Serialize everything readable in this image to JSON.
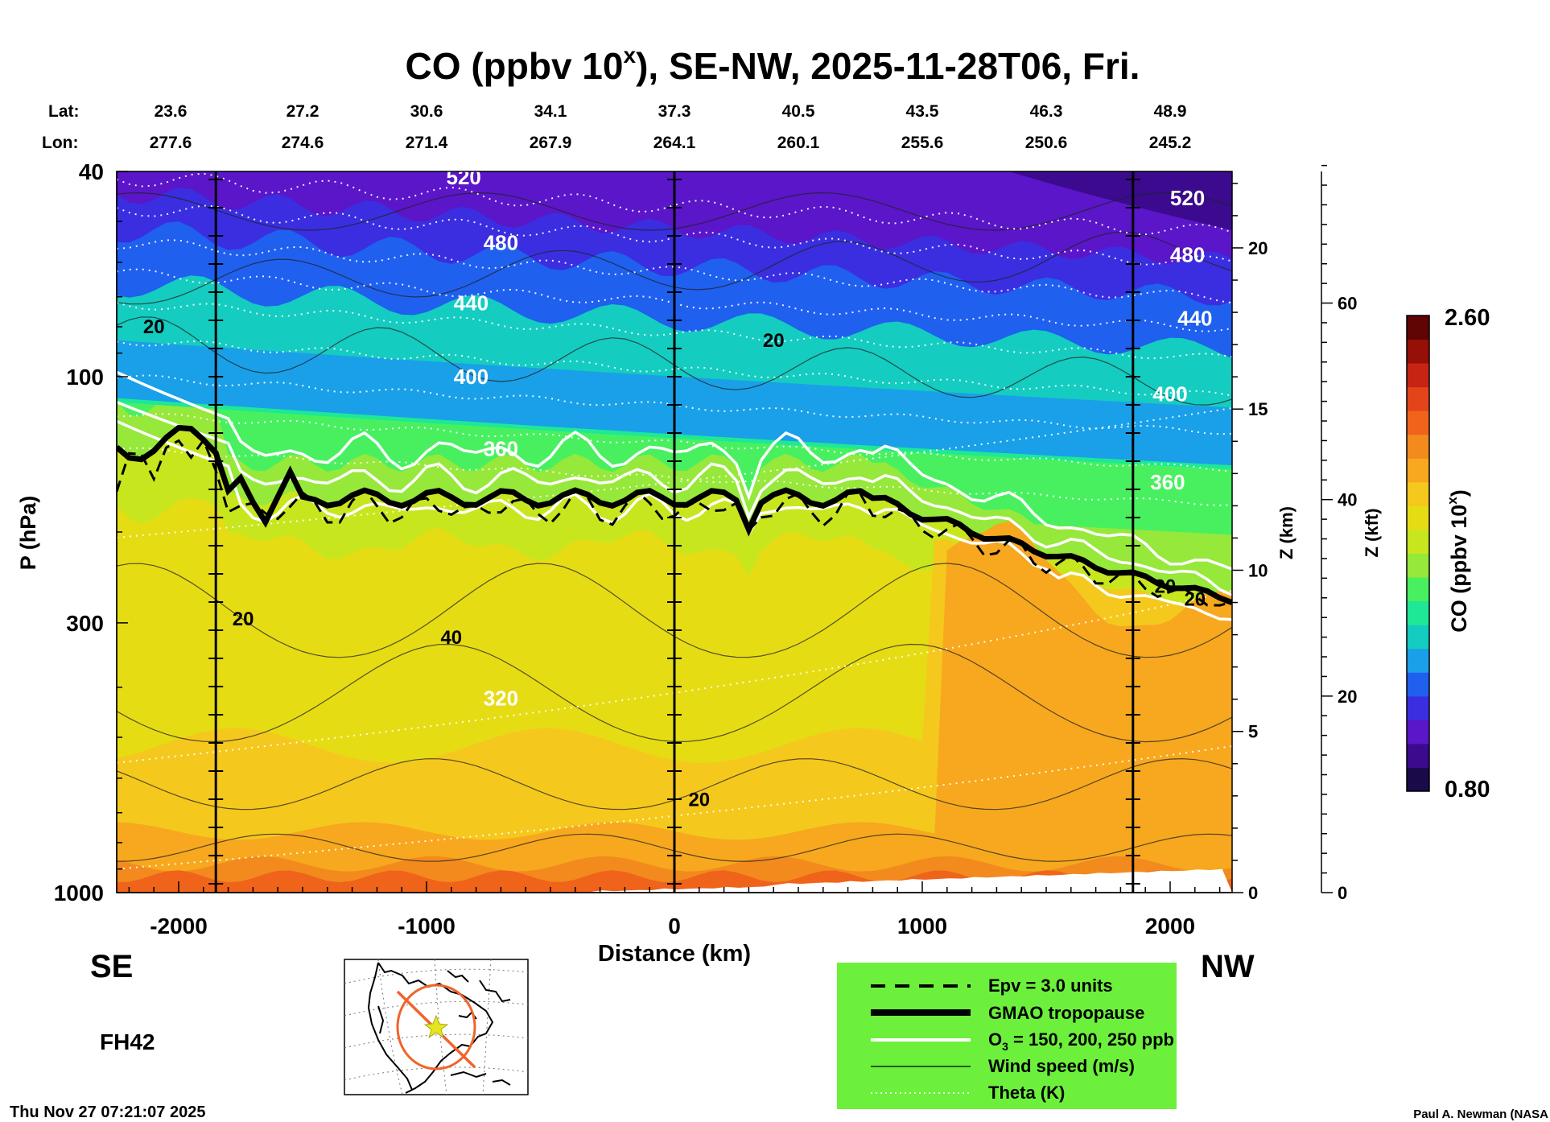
{
  "chart_data": {
    "type": "heatmap",
    "title_prefix": "CO (ppbv 10",
    "title_sup": "x",
    "title_suffix": "), SE-NW, 2025-11-28T06, Fri.",
    "lat_label": "Lat:",
    "lon_label": "Lon:",
    "lat_values": [
      "23.6",
      "27.2",
      "30.6",
      "34.1",
      "37.3",
      "40.5",
      "43.5",
      "46.3",
      "48.9"
    ],
    "lon_values": [
      "277.6",
      "274.6",
      "271.4",
      "267.9",
      "264.1",
      "260.1",
      "255.6",
      "250.6",
      "245.2"
    ],
    "xlabel": "Distance (km)",
    "xlim": [
      -2250,
      2250
    ],
    "x_ticks": [
      {
        "value": -2000,
        "label": "-2000"
      },
      {
        "value": -1000,
        "label": "-1000"
      },
      {
        "value": 0,
        "label": "0"
      },
      {
        "value": 1000,
        "label": "1000"
      },
      {
        "value": 2000,
        "label": "2000"
      }
    ],
    "ylabel": "P (hPa)",
    "ylim": [
      1000,
      40
    ],
    "y_scale": "log",
    "y_ticks": [
      {
        "value": 40,
        "label": "40"
      },
      {
        "value": 100,
        "label": "100"
      },
      {
        "value": 300,
        "label": "300"
      },
      {
        "value": 1000,
        "label": "1000"
      }
    ],
    "z_km_label": "Z (km)",
    "z_km_ticks": [
      {
        "value": 0,
        "label": "0"
      },
      {
        "value": 5,
        "label": "5"
      },
      {
        "value": 10,
        "label": "10"
      },
      {
        "value": 15,
        "label": "15"
      },
      {
        "value": 20,
        "label": "20"
      }
    ],
    "z_kft_label": "Z (kft)",
    "z_kft_ticks": [
      {
        "value": 0,
        "label": "0"
      },
      {
        "value": 20,
        "label": "20"
      },
      {
        "value": 40,
        "label": "40"
      },
      {
        "value": 60,
        "label": "60"
      }
    ],
    "colorbar": {
      "label_prefix": "CO (ppbv 10",
      "label_sup": "x",
      "label_suffix": ")",
      "min": "0.80",
      "max": "2.60",
      "colors": [
        "#1a0a4a",
        "#3b0a8e",
        "#5a16c8",
        "#3a2ee0",
        "#1f60ef",
        "#1aa0e8",
        "#14ccc0",
        "#1ee896",
        "#48f060",
        "#96e83a",
        "#c8e61e",
        "#e6dc14",
        "#f5c81e",
        "#f7a81e",
        "#f28a1e",
        "#ef641a",
        "#e4441a",
        "#c82414",
        "#961008",
        "#600404"
      ]
    },
    "vertical_line_positions_km": [
      -1850,
      0,
      1850
    ],
    "theta_labels": [
      {
        "label": "520",
        "x": -850,
        "p": 41
      },
      {
        "label": "480",
        "x": -700,
        "p": 55
      },
      {
        "label": "440",
        "x": -820,
        "p": 72
      },
      {
        "label": "400",
        "x": -820,
        "p": 100
      },
      {
        "label": "360",
        "x": -700,
        "p": 138
      },
      {
        "label": "320",
        "x": -700,
        "p": 420
      },
      {
        "label": "520",
        "x": 2070,
        "p": 45
      },
      {
        "label": "480",
        "x": 2070,
        "p": 58
      },
      {
        "label": "440",
        "x": 2100,
        "p": 77
      },
      {
        "label": "400",
        "x": 2000,
        "p": 108
      },
      {
        "label": "360",
        "x": 1990,
        "p": 160
      }
    ],
    "wind_labels": [
      {
        "label": "20",
        "x": -2100,
        "p": 80
      },
      {
        "label": "20",
        "x": 400,
        "p": 85
      },
      {
        "label": "20",
        "x": -1740,
        "p": 295
      },
      {
        "label": "40",
        "x": -900,
        "p": 320
      },
      {
        "label": "20",
        "x": 100,
        "p": 660
      },
      {
        "label": "20",
        "x": 1980,
        "p": 255
      },
      {
        "label": "20",
        "x": 2100,
        "p": 270
      }
    ],
    "se_label": "SE",
    "nw_label": "NW",
    "forecast_hour": "FH42",
    "legend": [
      {
        "label": "Epv = 3.0 units",
        "style": "dashed-black"
      },
      {
        "label": "GMAO tropopause",
        "style": "thick-black"
      },
      {
        "label_prefix": "O",
        "label_sub": "3",
        "label_suffix": " = 150, 200, 250 ppb",
        "style": "white"
      },
      {
        "label": "Wind speed (m/s)",
        "style": "thin-black"
      },
      {
        "label": "Theta (K)",
        "style": "dotted-white"
      }
    ],
    "timestamp": "Thu Nov 27 07:21:07 2025",
    "credit": "Paul A. Newman (NASA"
  },
  "colors": {
    "legend_bg": "#6cf03c",
    "inset_route": "#f0642a",
    "inset_star": "#e6e61e"
  }
}
